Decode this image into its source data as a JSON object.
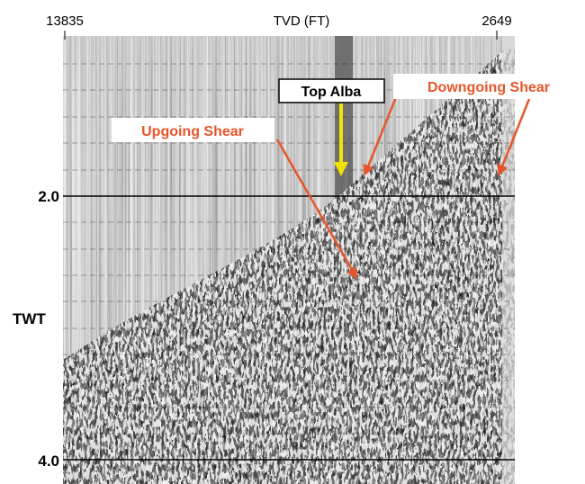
{
  "axes": {
    "x_left": "13835",
    "x_title": "TVD (FT)",
    "x_right": "2649",
    "y_title": "TWT",
    "y_ticks": [
      "2.0",
      "4.0"
    ]
  },
  "annotations": {
    "top": "Top Alba",
    "upgoing": "Upgoing Shear",
    "downgoing": "Downgoing Shear"
  }
}
